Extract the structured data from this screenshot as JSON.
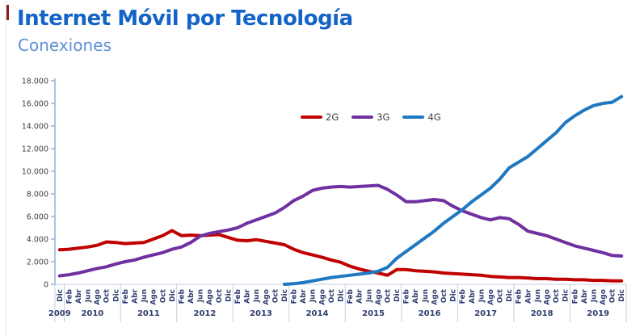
{
  "header": {
    "title": "Internet Móvil por Tecnología",
    "subtitle": "Conexiones"
  },
  "colors": {
    "title": "#1464C8",
    "subtitle": "#5E8FD6",
    "series_2g": "#C00000",
    "series_3g": "#7030A0",
    "series_4g": "#1F78C2",
    "y_axis_line": "#7FA8D9",
    "x_axis_line": "#C3CFE0",
    "year_separator": "#C3CFE0",
    "axis_value_labels": "#3D3D3D",
    "category_labels": "#2F3F6F"
  },
  "chart_data": {
    "type": "line",
    "title": "Internet Móvil por Tecnología",
    "subtitle": "Conexiones",
    "ylabel": "",
    "xlabel": "",
    "ylim": [
      0,
      18000
    ],
    "grid": false,
    "legend_position": "top-center",
    "y_tick_labels": [
      "0",
      "2.000",
      "4.000",
      "6.000",
      "8.000",
      "10.000",
      "12.000",
      "14.000",
      "16.000",
      "18.000"
    ],
    "x_tick_labels": [
      "Dic",
      "Feb",
      "Abr",
      "Jun",
      "Ago",
      "Oct",
      "Dic",
      "Feb",
      "Abr",
      "Jun",
      "Ago",
      "Oct",
      "Dic",
      "Feb",
      "Abr",
      "Jun",
      "Ago",
      "Oct",
      "Dic",
      "Feb",
      "Abr",
      "Jun",
      "Ago",
      "Oct",
      "Dic",
      "Feb",
      "Abr",
      "Jun",
      "Ago",
      "Oct",
      "Dic",
      "Feb",
      "Abr",
      "Jun",
      "Ago",
      "Oct",
      "Dic",
      "Feb",
      "Abr",
      "Jun",
      "Ago",
      "Oct",
      "Dic",
      "Feb",
      "Abr",
      "Jun",
      "Ago",
      "Oct",
      "Dic",
      "Feb",
      "Abr",
      "Jun",
      "Ago",
      "Oct",
      "Dic",
      "Feb",
      "Abr",
      "Jun",
      "Ago",
      "Oct",
      "Dic"
    ],
    "year_groups": [
      {
        "label": "2009",
        "ticks": 1
      },
      {
        "label": "2010",
        "ticks": 6
      },
      {
        "label": "2011",
        "ticks": 6
      },
      {
        "label": "2012",
        "ticks": 6
      },
      {
        "label": "2013",
        "ticks": 6
      },
      {
        "label": "2014",
        "ticks": 6
      },
      {
        "label": "2015",
        "ticks": 6
      },
      {
        "label": "2016",
        "ticks": 6
      },
      {
        "label": "2017",
        "ticks": 6
      },
      {
        "label": "2018",
        "ticks": 6
      },
      {
        "label": "2019",
        "ticks": 6
      }
    ],
    "series": [
      {
        "name": "2G",
        "color": "#C00000",
        "values": [
          3050,
          3100,
          3200,
          3300,
          3450,
          3750,
          3700,
          3600,
          3650,
          3700,
          4000,
          4300,
          4750,
          4300,
          4350,
          4300,
          4350,
          4400,
          4150,
          3900,
          3850,
          3950,
          3800,
          3650,
          3500,
          3100,
          2800,
          2600,
          2400,
          2150,
          1950,
          1600,
          1350,
          1150,
          1000,
          800,
          1300,
          1300,
          1200,
          1150,
          1100,
          1000,
          950,
          900,
          850,
          800,
          700,
          650,
          600,
          600,
          550,
          500,
          500,
          450,
          450,
          400,
          400,
          350,
          350,
          300,
          300
        ]
      },
      {
        "name": "3G",
        "color": "#7030A0",
        "values": [
          750,
          850,
          1000,
          1200,
          1400,
          1550,
          1800,
          2000,
          2150,
          2400,
          2600,
          2800,
          3100,
          3300,
          3700,
          4250,
          4500,
          4650,
          4800,
          5000,
          5400,
          5700,
          6000,
          6300,
          6800,
          7400,
          7800,
          8300,
          8500,
          8600,
          8650,
          8600,
          8650,
          8700,
          8750,
          8400,
          7900,
          7300,
          7300,
          7400,
          7500,
          7400,
          6900,
          6500,
          6200,
          5900,
          5700,
          5900,
          5800,
          5300,
          4700,
          4500,
          4300,
          4000,
          3700,
          3400,
          3200,
          3000,
          2800,
          2550,
          2500
        ]
      },
      {
        "name": "4G",
        "color": "#1F78C2",
        "values": [
          null,
          null,
          null,
          null,
          null,
          null,
          null,
          null,
          null,
          null,
          null,
          null,
          null,
          null,
          null,
          null,
          null,
          null,
          null,
          null,
          null,
          null,
          null,
          null,
          0,
          50,
          150,
          300,
          450,
          600,
          700,
          800,
          900,
          1000,
          1150,
          1500,
          2300,
          2900,
          3500,
          4100,
          4700,
          5400,
          6000,
          6600,
          7300,
          7900,
          8500,
          9300,
          10300,
          10800,
          11300,
          12000,
          12700,
          13400,
          14300,
          14900,
          15400,
          15800,
          16000,
          16100,
          16600
        ]
      }
    ]
  }
}
